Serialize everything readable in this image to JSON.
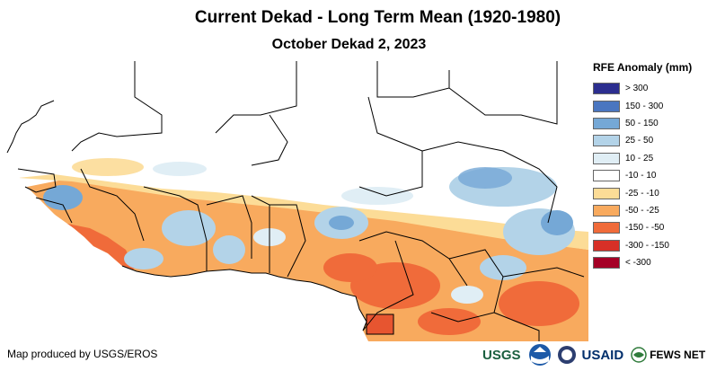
{
  "header": {
    "title": "Current Dekad - Long Term Mean (1920-1980)",
    "subtitle": "October Dekad 2, 2023"
  },
  "legend": {
    "title": "RFE Anomaly (mm)",
    "items": [
      {
        "label": "> 300",
        "color": "#2c2e8f"
      },
      {
        "label": "150 - 300",
        "color": "#4a76c0"
      },
      {
        "label": "50 - 150",
        "color": "#75a8d6"
      },
      {
        "label": "25 - 50",
        "color": "#b3d3e8"
      },
      {
        "label": "10 - 25",
        "color": "#e0eef5"
      },
      {
        "label": "-10 - 10",
        "color": "#ffffff"
      },
      {
        "label": "-25 - -10",
        "color": "#fcdc97"
      },
      {
        "label": "-50 - -25",
        "color": "#f8aa5e"
      },
      {
        "label": "-150 - -50",
        "color": "#f06b3a"
      },
      {
        "label": "-300 - -150",
        "color": "#d73027"
      },
      {
        "label": "< -300",
        "color": "#a50026"
      }
    ]
  },
  "footer": {
    "credit": "Map produced by USGS/EROS",
    "logos": [
      "USGS",
      "NOAA",
      "USAID",
      "FEWS NET"
    ]
  }
}
